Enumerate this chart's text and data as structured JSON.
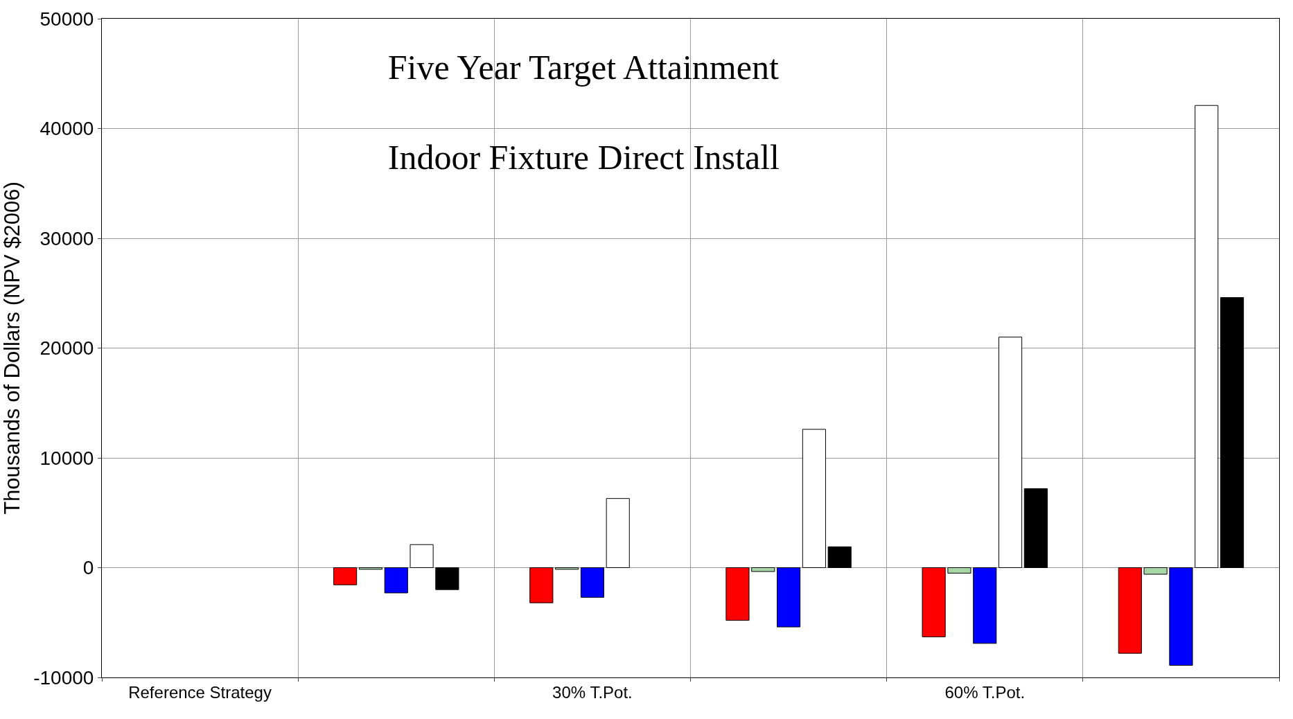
{
  "chart_data": {
    "type": "bar",
    "title": "Five Year Target Attainment\nIndoor Fixture Direct Install",
    "ylabel": "Thousands of Dollars (NPV $2006)",
    "categories": [
      "Reference Strategy",
      null,
      "30% T.Pot.",
      null,
      "60% T.Pot.",
      null
    ],
    "series": [
      {
        "color": "#ff0000",
        "values": [
          null,
          -1560,
          -3200,
          -4800,
          -6300,
          -7800
        ]
      },
      {
        "color": "#a8d8a8",
        "values": [
          null,
          -150,
          -150,
          -350,
          -500,
          -600
        ]
      },
      {
        "color": "#0000ff",
        "values": [
          null,
          -2300,
          -2700,
          -5400,
          -6900,
          -8900
        ]
      },
      {
        "color": "#ffffff",
        "values": [
          null,
          2100,
          6300,
          12600,
          21000,
          42100
        ]
      },
      {
        "color": "#000000",
        "values": [
          null,
          -2000,
          null,
          1900,
          7200,
          24600
        ]
      }
    ],
    "ylim": [
      -10000,
      50000
    ],
    "yticks": [
      -10000,
      0,
      10000,
      20000,
      30000,
      40000,
      50000
    ],
    "grid": true
  }
}
